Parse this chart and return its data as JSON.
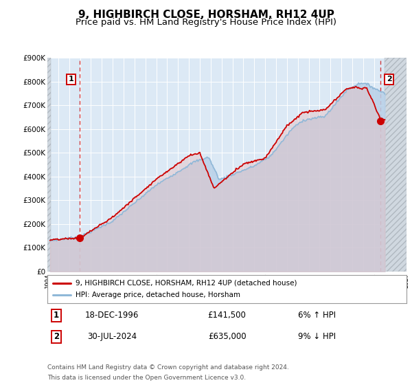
{
  "title": "9, HIGHBIRCH CLOSE, HORSHAM, RH12 4UP",
  "subtitle": "Price paid vs. HM Land Registry's House Price Index (HPI)",
  "background_color": "#ffffff",
  "plot_bg_color": "#dce9f5",
  "hatch_color": "#c0c8d0",
  "grid_color": "#ffffff",
  "xmin": 1994.0,
  "xmax": 2027.0,
  "ymin": 0,
  "ymax": 900000,
  "yticks": [
    0,
    100000,
    200000,
    300000,
    400000,
    500000,
    600000,
    700000,
    800000,
    900000
  ],
  "ytick_labels": [
    "£0",
    "£100K",
    "£200K",
    "£300K",
    "£400K",
    "£500K",
    "£600K",
    "£700K",
    "£800K",
    "£900K"
  ],
  "xticks": [
    1994,
    1995,
    1996,
    1997,
    1998,
    1999,
    2000,
    2001,
    2002,
    2003,
    2004,
    2005,
    2006,
    2007,
    2008,
    2009,
    2010,
    2011,
    2012,
    2013,
    2014,
    2015,
    2016,
    2017,
    2018,
    2019,
    2020,
    2021,
    2022,
    2023,
    2024,
    2025,
    2026,
    2027
  ],
  "red_line_color": "#cc0000",
  "blue_line_color": "#90b8d8",
  "blue_fill_color": "#b8d0e8",
  "marker1_x": 1996.97,
  "marker1_y": 141500,
  "marker2_x": 2024.58,
  "marker2_y": 635000,
  "vline1_x": 1996.97,
  "vline2_x": 2024.58,
  "data_start_x": 1994.3,
  "data_end_x": 2025.0,
  "legend_label_red": "9, HIGHBIRCH CLOSE, HORSHAM, RH12 4UP (detached house)",
  "legend_label_blue": "HPI: Average price, detached house, Horsham",
  "table_row1": [
    "1",
    "18-DEC-1996",
    "£141,500",
    "6% ↑ HPI"
  ],
  "table_row2": [
    "2",
    "30-JUL-2024",
    "£635,000",
    "9% ↓ HPI"
  ],
  "footer_line1": "Contains HM Land Registry data © Crown copyright and database right 2024.",
  "footer_line2": "This data is licensed under the Open Government Licence v3.0.",
  "title_fontsize": 11,
  "subtitle_fontsize": 9.5
}
